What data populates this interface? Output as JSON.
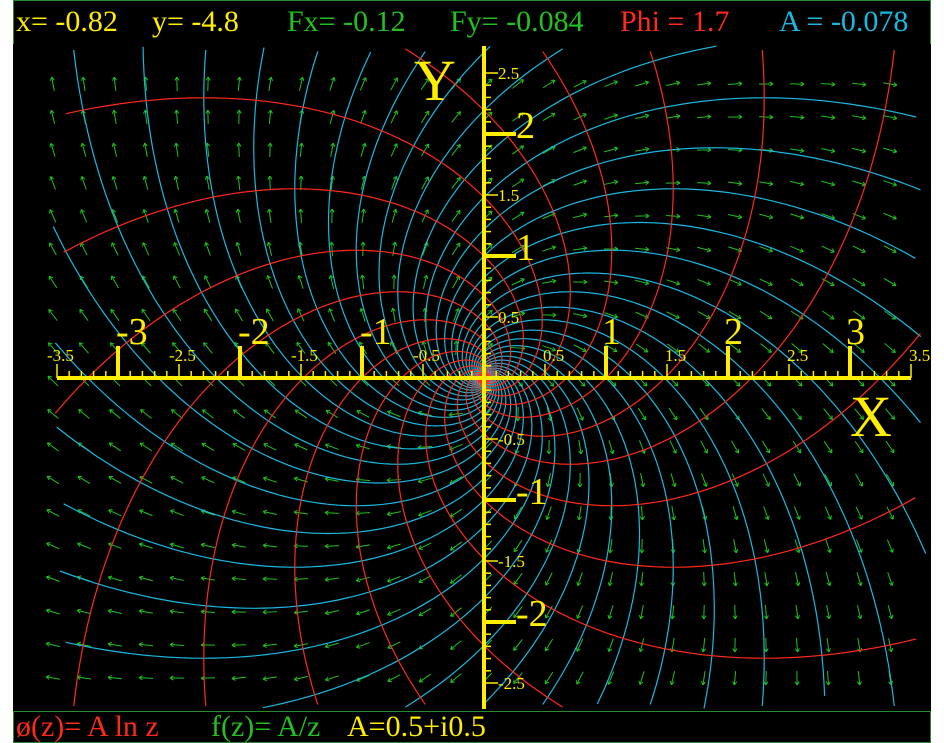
{
  "status": {
    "x_label": "x=",
    "x_value": "-0.82",
    "y_label": "y=",
    "y_value": "-4.8",
    "fx_label": "Fx=",
    "fx_value": "-0.12",
    "fy_label": "Fy=",
    "fy_value": "-0.084",
    "phi_label": "Phi =",
    "phi_value": "1.7",
    "a_label": "A =",
    "a_value": "-0.078"
  },
  "axes": {
    "x_title": "X",
    "y_title": "Y",
    "x_major_labels": [
      "-3",
      "-2",
      "-1",
      "1",
      "2",
      "3"
    ],
    "x_minor_labels": [
      "-3.5",
      "-2.5",
      "-1.5",
      "-0.5",
      "0.5",
      "1.5",
      "2.5",
      "3.5"
    ],
    "y_major_labels": [
      "2",
      "1",
      "-1",
      "-2"
    ],
    "y_minor_labels": [
      "2.5",
      "1.5",
      "0.5",
      "-0.5",
      "-1.5",
      "-2.5"
    ]
  },
  "formula": {
    "phi_text": "ø(z)= A ln z",
    "f_text": "f(z)= A/z",
    "a_text": "A=0.5+i0.5"
  },
  "colors": {
    "background": "#000000",
    "axis": "#ffee00",
    "potential_lines": "#ff2a1a",
    "stream_lines": "#1ab8e0",
    "vectors": "#22c020",
    "frame": "#2b8a2b"
  },
  "field": {
    "A_re": 0.5,
    "A_im": 0.5,
    "x_range": [
      -3.5,
      3.5
    ],
    "y_range": [
      -2.5,
      2.5
    ]
  }
}
